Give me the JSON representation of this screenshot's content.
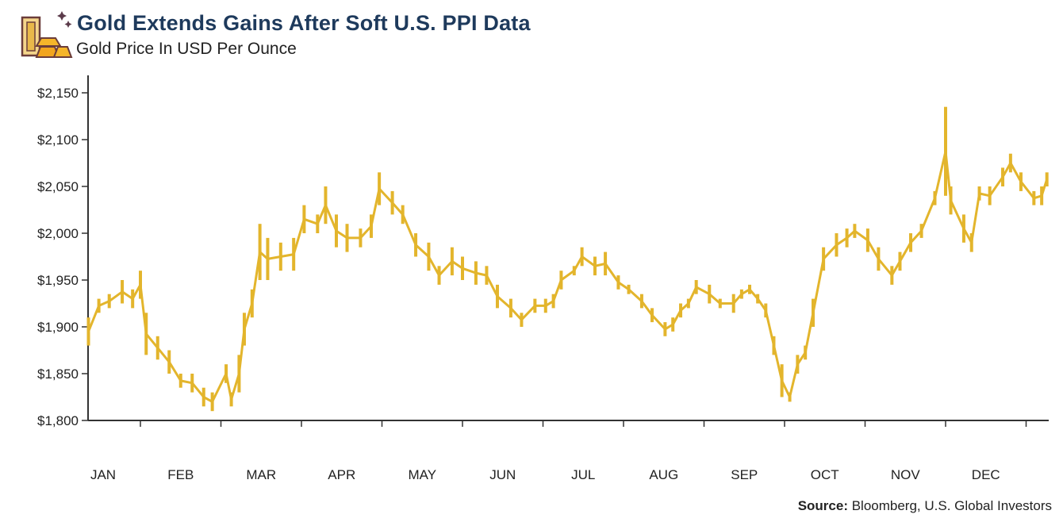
{
  "header": {
    "title": "Gold Extends Gains After Soft U.S. PPI Data",
    "subtitle": "Gold Price In USD Per Ounce",
    "logo_icon": "gold-bars-icon"
  },
  "footer": {
    "source_label": "Source:",
    "source_text": " Bloomberg, U.S. Global Investors"
  },
  "chart_data": {
    "type": "bar",
    "style": "daily high-low range bars",
    "title": "Gold Extends Gains After Soft U.S. PPI Data",
    "subtitle": "Gold Price In USD Per Ounce",
    "xlabel": "",
    "ylabel": "",
    "ylim": [
      1800,
      2150
    ],
    "yticks": [
      1800,
      1850,
      1900,
      1950,
      2000,
      2050,
      2100,
      2150
    ],
    "ytick_labels": [
      "$1,800",
      "$1,850",
      "$1,900",
      "$1,950",
      "$2,000",
      "$2,050",
      "$2,100",
      "$2,150"
    ],
    "xlim": [
      "2023-01-12",
      "2024-01-10"
    ],
    "xtick_labels": [
      "JAN",
      "FEB",
      "MAR",
      "APR",
      "MAY",
      "JUN",
      "JUL",
      "AUG",
      "SEP",
      "OCT",
      "NOV",
      "DEC"
    ],
    "grid": false,
    "color": "#E3B52C",
    "columns": [
      "date",
      "low",
      "high"
    ],
    "points": [
      [
        "2023-01-12",
        1880,
        1910
      ],
      [
        "2023-01-16",
        1915,
        1930
      ],
      [
        "2023-01-20",
        1920,
        1935
      ],
      [
        "2023-01-25",
        1925,
        1950
      ],
      [
        "2023-01-29",
        1920,
        1940
      ],
      [
        "2023-02-01",
        1930,
        1960
      ],
      [
        "2023-02-03",
        1870,
        1915
      ],
      [
        "2023-02-07",
        1865,
        1890
      ],
      [
        "2023-02-11",
        1850,
        1875
      ],
      [
        "2023-02-15",
        1835,
        1850
      ],
      [
        "2023-02-19",
        1830,
        1850
      ],
      [
        "2023-02-23",
        1815,
        1835
      ],
      [
        "2023-02-26",
        1810,
        1830
      ],
      [
        "2023-03-03",
        1840,
        1860
      ],
      [
        "2023-03-05",
        1815,
        1830
      ],
      [
        "2023-03-08",
        1830,
        1870
      ],
      [
        "2023-03-10",
        1880,
        1915
      ],
      [
        "2023-03-13",
        1910,
        1940
      ],
      [
        "2023-03-16",
        1950,
        2010
      ],
      [
        "2023-03-19",
        1950,
        1995
      ],
      [
        "2023-03-24",
        1960,
        1990
      ],
      [
        "2023-03-29",
        1960,
        1995
      ],
      [
        "2023-04-02",
        2000,
        2030
      ],
      [
        "2023-04-07",
        2000,
        2020
      ],
      [
        "2023-04-10",
        2010,
        2050
      ],
      [
        "2023-04-14",
        1985,
        2020
      ],
      [
        "2023-04-18",
        1980,
        2010
      ],
      [
        "2023-04-23",
        1985,
        2005
      ],
      [
        "2023-04-27",
        1995,
        2020
      ],
      [
        "2023-04-30",
        2030,
        2065
      ],
      [
        "2023-05-05",
        2020,
        2045
      ],
      [
        "2023-05-09",
        2010,
        2030
      ],
      [
        "2023-05-14",
        1975,
        2000
      ],
      [
        "2023-05-19",
        1960,
        1990
      ],
      [
        "2023-05-23",
        1945,
        1965
      ],
      [
        "2023-05-28",
        1955,
        1985
      ],
      [
        "2023-06-01",
        1950,
        1975
      ],
      [
        "2023-06-06",
        1945,
        1970
      ],
      [
        "2023-06-10",
        1945,
        1965
      ],
      [
        "2023-06-14",
        1920,
        1945
      ],
      [
        "2023-06-19",
        1910,
        1930
      ],
      [
        "2023-06-23",
        1900,
        1915
      ],
      [
        "2023-06-28",
        1915,
        1930
      ],
      [
        "2023-07-02",
        1915,
        1930
      ],
      [
        "2023-07-05",
        1920,
        1935
      ],
      [
        "2023-07-08",
        1940,
        1960
      ],
      [
        "2023-07-13",
        1955,
        1965
      ],
      [
        "2023-07-16",
        1965,
        1985
      ],
      [
        "2023-07-21",
        1955,
        1975
      ],
      [
        "2023-07-25",
        1955,
        1980
      ],
      [
        "2023-07-30",
        1940,
        1955
      ],
      [
        "2023-08-03",
        1935,
        1945
      ],
      [
        "2023-08-08",
        1920,
        1935
      ],
      [
        "2023-08-12",
        1905,
        1920
      ],
      [
        "2023-08-17",
        1890,
        1905
      ],
      [
        "2023-08-20",
        1895,
        1910
      ],
      [
        "2023-08-23",
        1910,
        1925
      ],
      [
        "2023-08-26",
        1920,
        1930
      ],
      [
        "2023-08-29",
        1935,
        1950
      ],
      [
        "2023-09-03",
        1925,
        1945
      ],
      [
        "2023-09-07",
        1920,
        1930
      ],
      [
        "2023-09-12",
        1915,
        1935
      ],
      [
        "2023-09-15",
        1930,
        1940
      ],
      [
        "2023-09-18",
        1935,
        1945
      ],
      [
        "2023-09-21",
        1925,
        1935
      ],
      [
        "2023-09-24",
        1910,
        1925
      ],
      [
        "2023-09-27",
        1870,
        1890
      ],
      [
        "2023-09-30",
        1825,
        1860
      ],
      [
        "2023-10-03",
        1820,
        1830
      ],
      [
        "2023-10-06",
        1850,
        1870
      ],
      [
        "2023-10-09",
        1865,
        1880
      ],
      [
        "2023-10-12",
        1900,
        1930
      ],
      [
        "2023-10-16",
        1960,
        1985
      ],
      [
        "2023-10-21",
        1975,
        2000
      ],
      [
        "2023-10-25",
        1985,
        2005
      ],
      [
        "2023-10-28",
        1995,
        2010
      ],
      [
        "2023-11-02",
        1980,
        2005
      ],
      [
        "2023-11-06",
        1960,
        1985
      ],
      [
        "2023-11-11",
        1945,
        1965
      ],
      [
        "2023-11-14",
        1960,
        1980
      ],
      [
        "2023-11-18",
        1980,
        2000
      ],
      [
        "2023-11-22",
        1995,
        2010
      ],
      [
        "2023-11-27",
        2030,
        2045
      ],
      [
        "2023-12-01",
        2040,
        2135
      ],
      [
        "2023-12-03",
        2020,
        2050
      ],
      [
        "2023-12-08",
        1990,
        2020
      ],
      [
        "2023-12-11",
        1980,
        2000
      ],
      [
        "2023-12-14",
        2035,
        2050
      ],
      [
        "2023-12-18",
        2030,
        2050
      ],
      [
        "2023-12-23",
        2050,
        2070
      ],
      [
        "2023-12-26",
        2065,
        2085
      ],
      [
        "2023-12-30",
        2045,
        2065
      ],
      [
        "2024-01-04",
        2030,
        2045
      ],
      [
        "2024-01-07",
        2030,
        2050
      ],
      [
        "2024-01-09",
        2050,
        2065
      ]
    ]
  }
}
